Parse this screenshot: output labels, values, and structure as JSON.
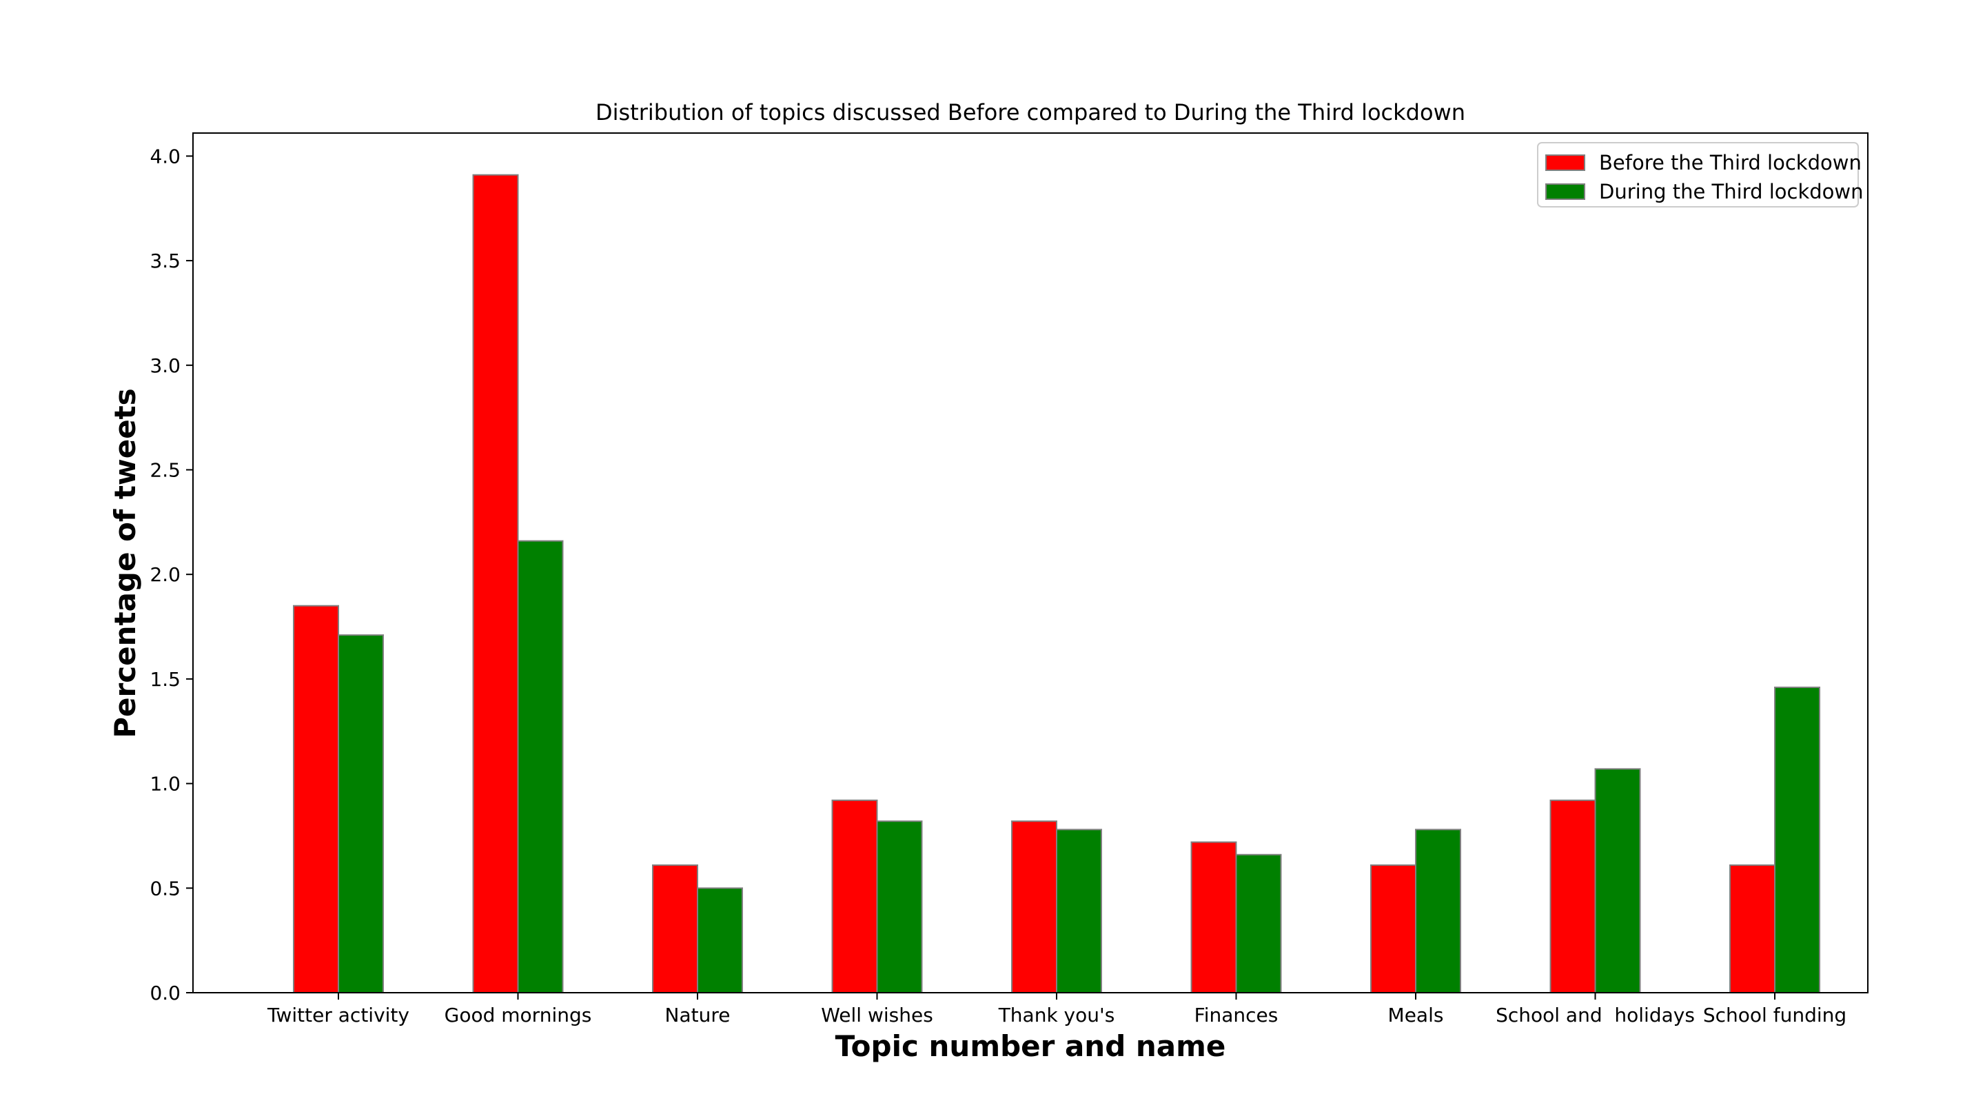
{
  "chart_data": {
    "type": "bar",
    "title": "Distribution of topics discussed Before compared to During the Third lockdown",
    "xlabel": "Topic number and name",
    "ylabel": "Percentage of tweets",
    "categories": [
      "Twitter activity",
      "Good mornings",
      "Nature",
      "Well wishes",
      "Thank you's",
      "Finances",
      "Meals",
      "School and  holidays",
      "School funding"
    ],
    "series": [
      {
        "name": "Before the Third lockdown",
        "color": "#ff0000",
        "values": [
          1.85,
          3.91,
          0.61,
          0.92,
          0.82,
          0.72,
          0.61,
          0.92,
          0.61
        ]
      },
      {
        "name": "During the Third lockdown",
        "color": "#008000",
        "values": [
          1.71,
          2.16,
          0.5,
          0.82,
          0.78,
          0.66,
          0.78,
          1.07,
          1.46
        ]
      }
    ],
    "ylim": [
      0,
      4.1
    ],
    "yticks": [
      "0.0",
      "0.5",
      "1.0",
      "1.5",
      "2.0",
      "2.5",
      "3.0",
      "3.5",
      "4.0"
    ],
    "grid": false,
    "legend_position": "top-right",
    "bar_edge_color": "#808080"
  }
}
